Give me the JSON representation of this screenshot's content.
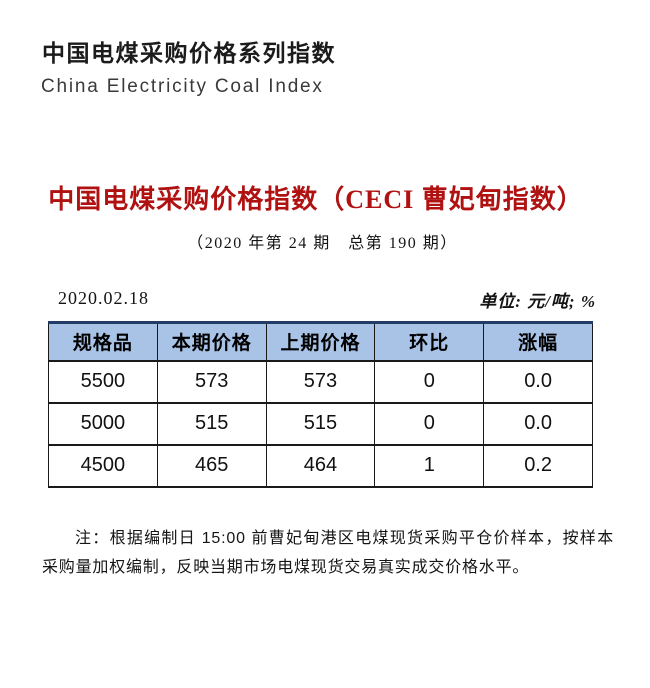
{
  "header": {
    "cn_title": "中国电煤采购价格系列指数",
    "en_title": "China Electricity Coal Index"
  },
  "report": {
    "title": "中国电煤采购价格指数（CECI 曹妃甸指数）",
    "issue_line": "（2020 年第 24 期　总第 190 期）",
    "date": "2020.02.18",
    "unit_label": "单位: 元/吨; %"
  },
  "table": {
    "headers": [
      "规格品",
      "本期价格",
      "上期价格",
      "环比",
      "涨幅"
    ],
    "rows": [
      {
        "spec": "5500",
        "current_price": "573",
        "previous_price": "573",
        "change": "0",
        "change_rate": "0.0"
      },
      {
        "spec": "5000",
        "current_price": "515",
        "previous_price": "515",
        "change": "0",
        "change_rate": "0.0"
      },
      {
        "spec": "4500",
        "current_price": "465",
        "previous_price": "464",
        "change": "1",
        "change_rate": "0.2"
      }
    ]
  },
  "note": {
    "text": "注：根据编制日 15:00 前曹妃甸港区电煤现货采购平仓价样本，按样本采购量加权编制，反映当期市场电煤现货交易真实成交价格水平。"
  },
  "colors": {
    "title_red": "#b01111",
    "value_red": "#e60505",
    "header_bg": "#a8c3e6",
    "border_dark": "#1a1a1a",
    "header_top_border": "#223c66"
  }
}
